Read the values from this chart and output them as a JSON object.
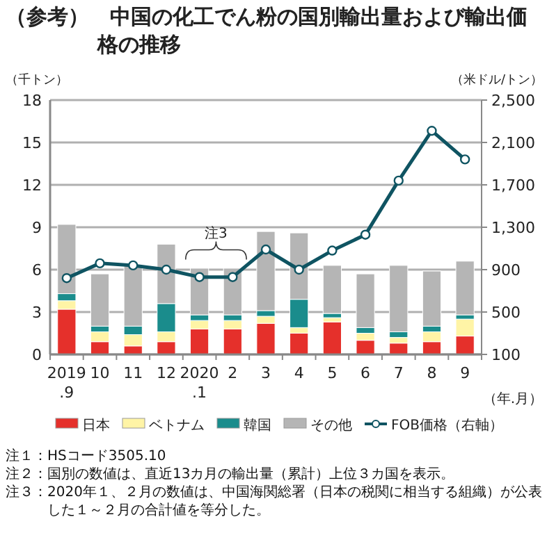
{
  "chart_data": {
    "type": "bar",
    "stacked": true,
    "title": "（参考）　中国の化工でん粉の国別輸出量および輸出価格の推移",
    "ylabel": "（千トン）",
    "y2label": "（米ドル/トン）",
    "xlabel": "（年.月）",
    "categories": [
      "2019\n.9",
      "10",
      "11",
      "12",
      "2020\n.1",
      "2",
      "3",
      "4",
      "5",
      "6",
      "7",
      "8",
      "9"
    ],
    "series": [
      {
        "name": "日本",
        "color": "#e5302b",
        "values": [
          3.2,
          0.9,
          0.6,
          0.9,
          1.8,
          1.8,
          2.2,
          1.5,
          2.3,
          1.0,
          0.8,
          0.9,
          1.3
        ]
      },
      {
        "name": "ベトナム",
        "color": "#fff4a6",
        "values": [
          0.6,
          0.7,
          0.8,
          0.7,
          0.6,
          0.6,
          0.5,
          0.4,
          0.3,
          0.5,
          0.4,
          0.7,
          1.2
        ]
      },
      {
        "name": "韓国",
        "color": "#1a8c8c",
        "values": [
          0.5,
          0.4,
          0.6,
          2.0,
          0.4,
          0.4,
          0.4,
          2.0,
          0.3,
          0.4,
          0.4,
          0.4,
          0.3
        ]
      },
      {
        "name": "その他",
        "color": "#b5b5b5",
        "values": [
          4.9,
          3.7,
          4.3,
          4.2,
          3.3,
          3.3,
          5.6,
          4.7,
          3.4,
          3.8,
          4.7,
          3.9,
          3.8
        ]
      },
      {
        "name": "FOB価格（右軸）",
        "type": "line",
        "axis": "y2",
        "color": "#0f5462",
        "values": [
          820,
          960,
          940,
          900,
          830,
          830,
          1090,
          900,
          1080,
          1230,
          1740,
          2210,
          1940
        ]
      }
    ],
    "ylim": [
      0,
      18
    ],
    "yticks": [
      0,
      3,
      6,
      9,
      12,
      15,
      18
    ],
    "y2lim": [
      100,
      2500
    ],
    "y2ticks": [
      {
        "value": 100,
        "label": "100"
      },
      {
        "value": 500,
        "label": "500"
      },
      {
        "value": 900,
        "label": "900"
      },
      {
        "value": 1300,
        "label": "1,300"
      },
      {
        "value": 1700,
        "label": "1,700"
      },
      {
        "value": 2100,
        "label": "2,100"
      },
      {
        "value": 2500,
        "label": "2,500"
      }
    ],
    "grid": "y",
    "legend": "bottom",
    "marker": "circle",
    "annotations": [
      "注3",
      "注１：HSコード3505.10",
      "注２：国別の数値は、直近13カ月の輸出量（累計）上位３カ国を表示。",
      "注３：2020年１、２月の数値は、中国海関総署（日本の税関に相当する組織）が公表した１～２月の合計値を等分した。"
    ]
  }
}
